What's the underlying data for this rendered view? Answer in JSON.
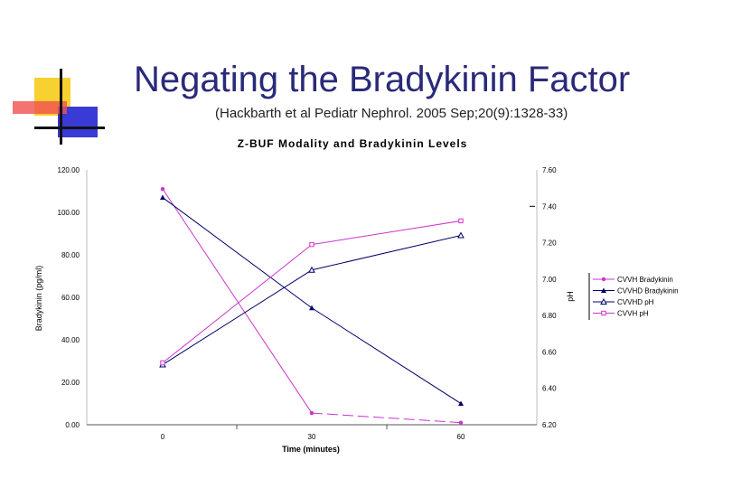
{
  "slide": {
    "title": "Negating the Bradykinin Factor",
    "subtitle": "(Hackbarth et al Pediatr Nephrol. 2005 Sep;20(9):1328-33)"
  },
  "chart_data": {
    "type": "line",
    "title": "Z-BUF Modality and Bradykinin Levels",
    "xlabel": "Time (minutes)",
    "ylabel": "Bradykinin (pg/ml)",
    "y2label": "pH",
    "x": [
      0,
      30,
      60
    ],
    "x_tick_labels": [
      "0",
      "30",
      "60"
    ],
    "ylim": [
      0,
      120
    ],
    "y_tick_labels": [
      "0.00",
      "20.00",
      "40.00",
      "60.00",
      "80.00",
      "100.00",
      "120.00"
    ],
    "y2lim": [
      6.2,
      7.6
    ],
    "y2_tick_labels": [
      "6.20",
      "6.40",
      "6.60",
      "6.80",
      "7.00",
      "7.20",
      "7.40",
      "7.60"
    ],
    "grid": false,
    "legend_position": "right",
    "series": [
      {
        "name": "CVVH Bradykinin",
        "axis": "left",
        "values": [
          111,
          5.5,
          1
        ],
        "color": "#cc33cc",
        "marker": "circle",
        "dash": "segments"
      },
      {
        "name": "CVVHD Bradykinin",
        "axis": "left",
        "values": [
          107,
          55,
          10
        ],
        "color": "#000066",
        "marker": "triangle",
        "dash": "solid"
      },
      {
        "name": "CVVHD pH",
        "axis": "right",
        "values": [
          6.53,
          7.05,
          7.24
        ],
        "color": "#000066",
        "marker": "triangle-open",
        "dash": "solid"
      },
      {
        "name": "CVVH pH",
        "axis": "right",
        "values": [
          6.54,
          7.19,
          7.32
        ],
        "color": "#cc33cc",
        "marker": "square-open",
        "dash": "solid"
      }
    ],
    "annotations": [
      "7.40"
    ]
  }
}
